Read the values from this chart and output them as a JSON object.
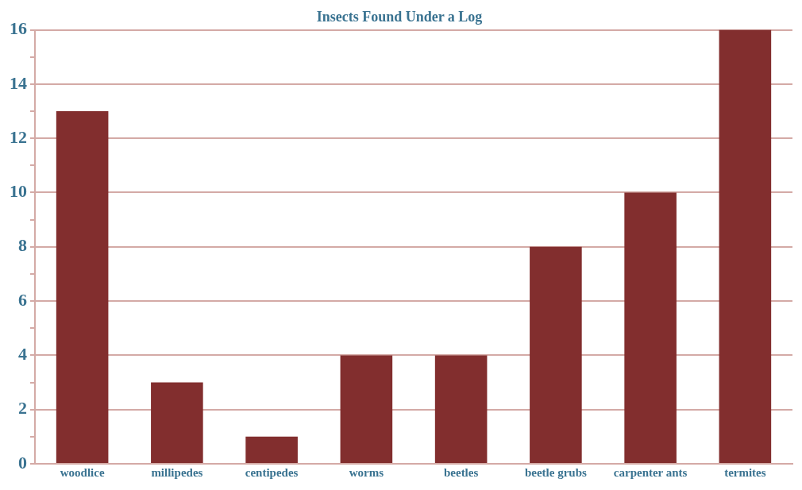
{
  "chart_data": {
    "type": "bar",
    "title": "Insects Found Under a Log",
    "categories": [
      "woodlice",
      "millipedes",
      "centipedes",
      "worms",
      "beetles",
      "beetle grubs",
      "carpenter ants",
      "termites"
    ],
    "values": [
      13,
      3,
      1,
      4,
      4,
      8,
      10,
      16
    ],
    "color": "#822e2e",
    "ylim": [
      0,
      16
    ],
    "yticks": [
      0,
      {
        "value": 1,
        "label": null
      },
      2,
      {
        "value": 3,
        "label": null
      },
      4,
      {
        "value": 5,
        "label": null
      },
      6,
      {
        "value": 7,
        "label": null
      },
      8,
      {
        "value": 9,
        "label": null
      },
      10,
      {
        "value": 11,
        "label": null
      },
      12,
      {
        "value": 13,
        "label": null
      },
      14,
      {
        "value": 15,
        "label": null
      },
      16
    ],
    "grid": "y",
    "legend": false
  }
}
